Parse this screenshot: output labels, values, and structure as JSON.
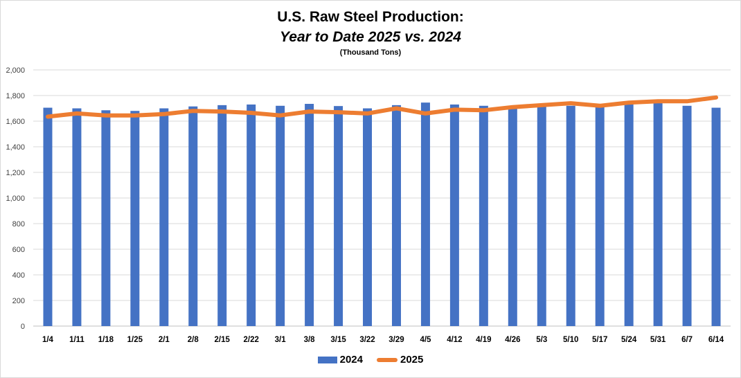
{
  "chart_data": {
    "type": "bar+line",
    "title": "U.S. Raw Steel Production:",
    "subtitle": "Year to Date 2025 vs. 2024",
    "unit_note": "(Thousand Tons)",
    "categories": [
      "1/4",
      "1/11",
      "1/18",
      "1/25",
      "2/1",
      "2/8",
      "2/15",
      "2/22",
      "3/1",
      "3/8",
      "3/15",
      "3/22",
      "3/29",
      "4/5",
      "4/12",
      "4/19",
      "4/26",
      "5/3",
      "5/10",
      "5/17",
      "5/24",
      "5/31",
      "6/7",
      "6/14"
    ],
    "series": [
      {
        "name": "2024",
        "type": "bar",
        "color": "#4472c4",
        "values": [
          1705,
          1700,
          1685,
          1680,
          1700,
          1715,
          1725,
          1730,
          1720,
          1735,
          1718,
          1700,
          1725,
          1745,
          1730,
          1720,
          1700,
          1720,
          1720,
          1710,
          1740,
          1750,
          1720,
          1705
        ]
      },
      {
        "name": "2025",
        "type": "line",
        "color": "#ed7d31",
        "values": [
          1635,
          1660,
          1645,
          1645,
          1655,
          1680,
          1675,
          1665,
          1645,
          1675,
          1670,
          1660,
          1700,
          1660,
          1690,
          1685,
          1710,
          1725,
          1740,
          1720,
          1745,
          1755,
          1755,
          1785
        ]
      }
    ],
    "ylim": [
      0,
      2000
    ],
    "yticks": [
      "0",
      "200",
      "400",
      "600",
      "800",
      "1,000",
      "1,200",
      "1,400",
      "1,600",
      "1,800",
      "2,000"
    ],
    "grid": true,
    "legend_position": "bottom"
  }
}
